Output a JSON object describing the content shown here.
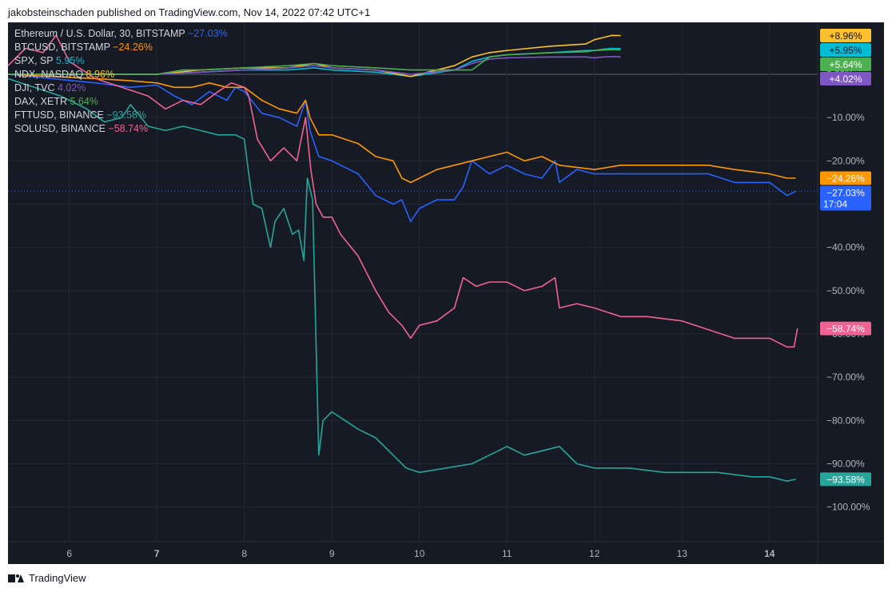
{
  "header": {
    "text": "jakobsteinschaden published on TradingView.com, Nov 14, 2022 07:42 UTC+1"
  },
  "footer": {
    "brand": "TradingView"
  },
  "colors": {
    "background": "#161a25",
    "grid": "#242833",
    "text": "#d1d4dc",
    "axis_text": "#b2b5be"
  },
  "chart_data": {
    "type": "line",
    "scale_label": "Mixed",
    "ylim": [
      -108,
      12
    ],
    "xlim": [
      5.3,
      14.55
    ],
    "yticks": [
      {
        "v": 0,
        "label": "0.00%"
      },
      {
        "v": -10,
        "label": "−10.00%"
      },
      {
        "v": -20,
        "label": "−20.00%"
      },
      {
        "v": -30,
        "label": "−30.00%"
      },
      {
        "v": -40,
        "label": "−40.00%"
      },
      {
        "v": -50,
        "label": "−50.00%"
      },
      {
        "v": -60,
        "label": "−60.00%"
      },
      {
        "v": -70,
        "label": "−70.00%"
      },
      {
        "v": -80,
        "label": "−80.00%"
      },
      {
        "v": -90,
        "label": "−90.00%"
      },
      {
        "v": -100,
        "label": "−100.00%"
      }
    ],
    "xticks": [
      {
        "v": 6,
        "label": "6",
        "bold": false
      },
      {
        "v": 7,
        "label": "7",
        "bold": true
      },
      {
        "v": 8,
        "label": "8",
        "bold": false
      },
      {
        "v": 9,
        "label": "9",
        "bold": false
      },
      {
        "v": 10,
        "label": "10",
        "bold": false
      },
      {
        "v": 11,
        "label": "11",
        "bold": false
      },
      {
        "v": 12,
        "label": "12",
        "bold": false
      },
      {
        "v": 13,
        "label": "13",
        "bold": false
      },
      {
        "v": 14,
        "label": "14",
        "bold": true
      }
    ],
    "current_time_label": "17:04",
    "series": [
      {
        "name": "Ethereum / U.S. Dollar, 30, BITSTAMP",
        "value_text": "−27.03%",
        "badge": "−27.03%",
        "color": "#2962ff",
        "x": [
          5.3,
          5.8,
          6.3,
          6.7,
          7.0,
          7.2,
          7.4,
          7.6,
          7.8,
          7.9,
          8.0,
          8.2,
          8.4,
          8.6,
          8.7,
          8.75,
          8.85,
          9.0,
          9.3,
          9.5,
          9.7,
          9.8,
          9.9,
          10.0,
          10.2,
          10.4,
          10.5,
          10.6,
          10.8,
          11.0,
          11.2,
          11.4,
          11.55,
          11.6,
          11.8,
          12.0,
          12.3,
          12.6,
          13.0,
          13.3,
          13.6,
          14.0,
          14.2,
          14.3
        ],
        "y": [
          0,
          -1,
          -2,
          -3,
          -2.5,
          -5,
          -7,
          -4,
          -6,
          -3,
          -4,
          -9,
          -10,
          -12,
          -6,
          -13,
          -19,
          -20,
          -23,
          -28,
          -30,
          -29,
          -34,
          -31,
          -29,
          -29,
          -26,
          -20,
          -23,
          -21,
          -23,
          -24,
          -20,
          -25,
          -22,
          -23,
          -23,
          -23,
          -23,
          -23,
          -25,
          -25,
          -28,
          -27
        ]
      },
      {
        "name": "BTCUSD, BITSTAMP",
        "value_text": "−24.26%",
        "badge": "−24.26%",
        "color": "#ff9800",
        "x": [
          5.3,
          5.8,
          6.3,
          6.7,
          7.0,
          7.2,
          7.4,
          7.6,
          7.8,
          8.0,
          8.2,
          8.4,
          8.6,
          8.7,
          8.75,
          8.85,
          9.0,
          9.3,
          9.5,
          9.7,
          9.8,
          9.9,
          10.0,
          10.2,
          10.4,
          10.6,
          10.8,
          11.0,
          11.2,
          11.4,
          11.6,
          12.0,
          12.3,
          12.6,
          13.0,
          13.3,
          13.6,
          14.0,
          14.2,
          14.3
        ],
        "y": [
          0,
          -0.5,
          -1,
          -1.5,
          -2,
          -3,
          -3,
          -2,
          -3,
          -3,
          -6,
          -8,
          -9,
          -6,
          -10,
          -14,
          -14,
          -16,
          -19,
          -20,
          -24,
          -25,
          -24,
          -22,
          -21,
          -20,
          -19,
          -18,
          -20,
          -19,
          -21,
          -22,
          -21,
          -21,
          -21,
          -21,
          -22,
          -23,
          -24,
          -24
        ]
      },
      {
        "name": "SPX, SP",
        "value_text": "5.95%",
        "badge": "+5.95%",
        "color": "#00bcd4",
        "x": [
          5.3,
          6.0,
          7.0,
          7.5,
          8.0,
          8.5,
          8.8,
          9.0,
          9.5,
          9.9,
          10.4,
          10.6,
          10.8,
          11.0,
          11.5,
          11.9,
          12.0,
          12.1,
          12.2,
          12.3
        ],
        "y": [
          0,
          0,
          0,
          0.5,
          1,
          1,
          1.5,
          1,
          0.5,
          -0.5,
          1,
          3,
          4,
          4.5,
          5,
          5.5,
          5.5,
          5.8,
          6,
          5.95
        ]
      },
      {
        "name": "NDX, NASDAQ",
        "value_text": "8.96%",
        "badge": "+8.96%",
        "color": "#fbc02d",
        "x": [
          5.3,
          6.0,
          7.0,
          7.5,
          8.0,
          8.5,
          8.8,
          9.0,
          9.5,
          9.9,
          10.4,
          10.6,
          10.8,
          11.0,
          11.5,
          11.9,
          12.0,
          12.1,
          12.2,
          12.3
        ],
        "y": [
          0,
          0,
          0,
          1,
          1.5,
          1.5,
          2.5,
          1.5,
          1,
          -0.5,
          2,
          4,
          5,
          5.5,
          6.5,
          7,
          8,
          8.5,
          9,
          8.96
        ]
      },
      {
        "name": "DJI, TVC",
        "value_text": "4.02%",
        "badge": "+4.02%",
        "color": "#7e57c2",
        "x": [
          5.3,
          6.0,
          7.0,
          7.5,
          8.0,
          8.5,
          8.8,
          9.0,
          9.5,
          9.9,
          10.4,
          10.6,
          10.8,
          11.0,
          11.5,
          11.9,
          12.0,
          12.1,
          12.2,
          12.3
        ],
        "y": [
          0,
          0,
          0,
          0.5,
          1,
          1.5,
          2,
          1.5,
          1,
          0,
          1,
          2.5,
          3.5,
          3.8,
          4,
          4,
          3.8,
          4,
          4.1,
          4.02
        ]
      },
      {
        "name": "DAX, XETR",
        "value_text": "5.64%",
        "badge": "+5.64%",
        "color": "#4caf50",
        "x": [
          5.3,
          6.0,
          7.0,
          7.3,
          7.5,
          8.0,
          8.5,
          8.8,
          9.0,
          9.5,
          9.9,
          10.3,
          10.6,
          10.8,
          11.0,
          11.5,
          11.9,
          12.0,
          12.1,
          12.2,
          12.3
        ],
        "y": [
          0,
          0,
          0,
          1,
          1,
          1.5,
          2,
          2.5,
          2,
          1.5,
          1,
          1,
          1,
          4,
          4.5,
          5,
          5.2,
          5.5,
          5.6,
          5.7,
          5.64
        ]
      },
      {
        "name": "FTTUSD, BINANCE",
        "value_text": "−93.58%",
        "badge": "−93.58%",
        "color": "#26a69a",
        "x": [
          5.3,
          5.6,
          5.9,
          6.2,
          6.4,
          6.6,
          6.7,
          6.9,
          7.1,
          7.3,
          7.5,
          7.7,
          7.9,
          8.0,
          8.05,
          8.1,
          8.2,
          8.3,
          8.35,
          8.45,
          8.55,
          8.62,
          8.68,
          8.72,
          8.78,
          8.85,
          8.9,
          9.0,
          9.15,
          9.3,
          9.5,
          9.7,
          9.85,
          10.0,
          10.3,
          10.6,
          10.8,
          11.0,
          11.2,
          11.4,
          11.6,
          11.8,
          12.0,
          12.4,
          12.8,
          13.0,
          13.4,
          13.8,
          14.0,
          14.2,
          14.3
        ],
        "y": [
          -1,
          -3,
          -5,
          -8,
          -11,
          -10,
          -7,
          -12,
          -13,
          -12,
          -13,
          -14,
          -14,
          -15,
          -23,
          -30,
          -31,
          -40,
          -34,
          -31,
          -37,
          -36,
          -43,
          -24,
          -29,
          -88,
          -80,
          -78,
          -80,
          -82,
          -84,
          -88,
          -91,
          -92,
          -91,
          -90,
          -88,
          -86,
          -88,
          -87,
          -86,
          -90,
          -91,
          -91,
          -92,
          -92,
          -92,
          -93,
          -93,
          -94,
          -93.58
        ]
      },
      {
        "name": "SOLUSD, BINANCE",
        "value_text": "−58.74%",
        "badge": "−58.74%",
        "color": "#f06292",
        "x": [
          5.3,
          5.5,
          5.7,
          5.85,
          6.0,
          6.3,
          6.6,
          6.9,
          7.1,
          7.3,
          7.5,
          7.7,
          7.85,
          8.0,
          8.05,
          8.15,
          8.3,
          8.45,
          8.6,
          8.7,
          8.76,
          8.82,
          8.9,
          9.0,
          9.1,
          9.3,
          9.4,
          9.5,
          9.65,
          9.8,
          9.9,
          10.0,
          10.2,
          10.4,
          10.5,
          10.65,
          10.8,
          11.0,
          11.2,
          11.4,
          11.55,
          11.6,
          11.8,
          12.0,
          12.3,
          12.6,
          13.0,
          13.3,
          13.6,
          14.0,
          14.1,
          14.2,
          14.28,
          14.32
        ],
        "y": [
          2,
          6,
          5,
          9,
          3,
          -1,
          -3,
          -5,
          -8,
          -6,
          -7,
          -4,
          -2,
          -3,
          -5,
          -15,
          -20,
          -17,
          -20,
          -10,
          -22,
          -30,
          -33,
          -33,
          -37,
          -42,
          -46,
          -50,
          -55,
          -58,
          -61,
          -58,
          -57,
          -54,
          -47,
          -49,
          -48,
          -48,
          -50,
          -49,
          -47,
          -54,
          -53,
          -54,
          -56,
          -56,
          -57,
          -59,
          -61,
          -61,
          -62,
          -63,
          -63,
          -58.74
        ]
      }
    ]
  }
}
